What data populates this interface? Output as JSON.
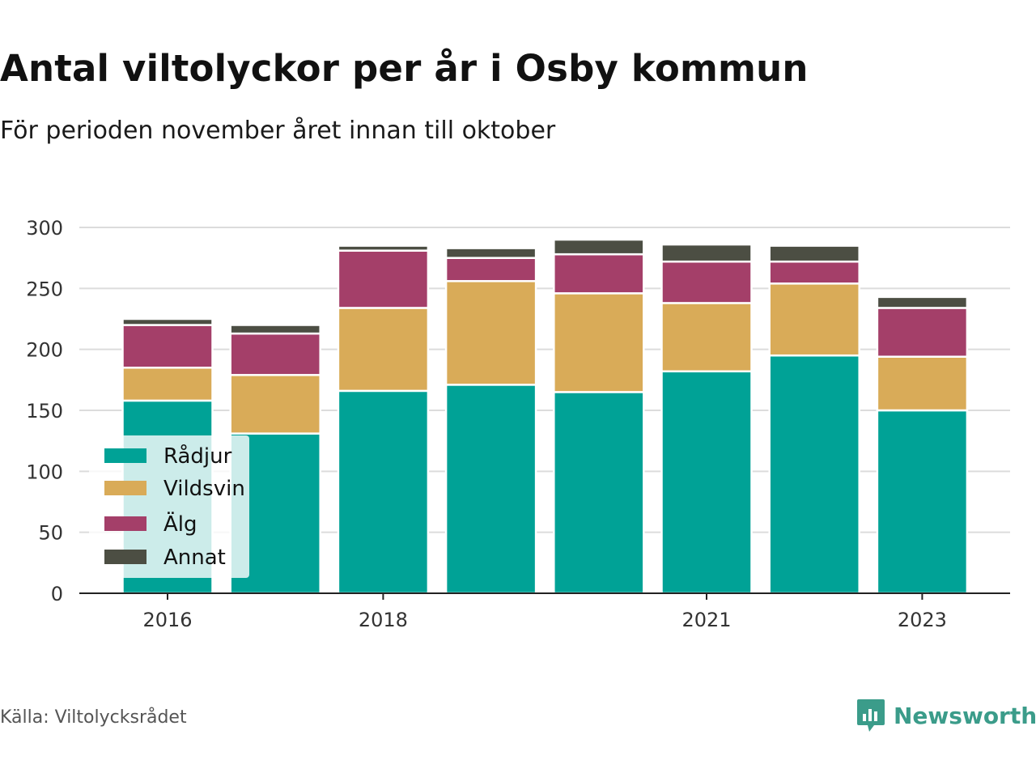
{
  "header": {
    "title": "Antal viltolyckor per år i Osby kommun",
    "subtitle": "För perioden november året innan till oktober"
  },
  "footer": {
    "source": "Källa: Viltolycksrådet",
    "brand": "Newsworthy",
    "brand_icon": "bar-chart-speech-icon",
    "brand_color": "#3b9c8a"
  },
  "chart_data": {
    "type": "bar",
    "stacked": true,
    "title": "Antal viltolyckor per år i Osby kommun",
    "subtitle": "För perioden november året innan till oktober",
    "categories": [
      2016,
      2017,
      2018,
      2019,
      2020,
      2021,
      2022,
      2023
    ],
    "x_tick_labels": [
      "2016",
      "2018",
      "2021",
      "2023"
    ],
    "y_ticks": [
      0,
      50,
      100,
      150,
      200,
      250,
      300
    ],
    "ylim": [
      0,
      300
    ],
    "grid": true,
    "legend_position": "bottom-left",
    "series": [
      {
        "name": "Rådjur",
        "color": "#00a296",
        "values": [
          158,
          131,
          166,
          171,
          165,
          182,
          195,
          150
        ]
      },
      {
        "name": "Vildsvin",
        "color": "#d9ab58",
        "values": [
          27,
          48,
          68,
          85,
          81,
          56,
          59,
          44
        ]
      },
      {
        "name": "Älg",
        "color": "#a43f69",
        "values": [
          35,
          34,
          47,
          19,
          32,
          34,
          18,
          40
        ]
      },
      {
        "name": "Annat",
        "color": "#4c4e43",
        "values": [
          5,
          7,
          4,
          8,
          12,
          14,
          13,
          9
        ]
      }
    ]
  }
}
